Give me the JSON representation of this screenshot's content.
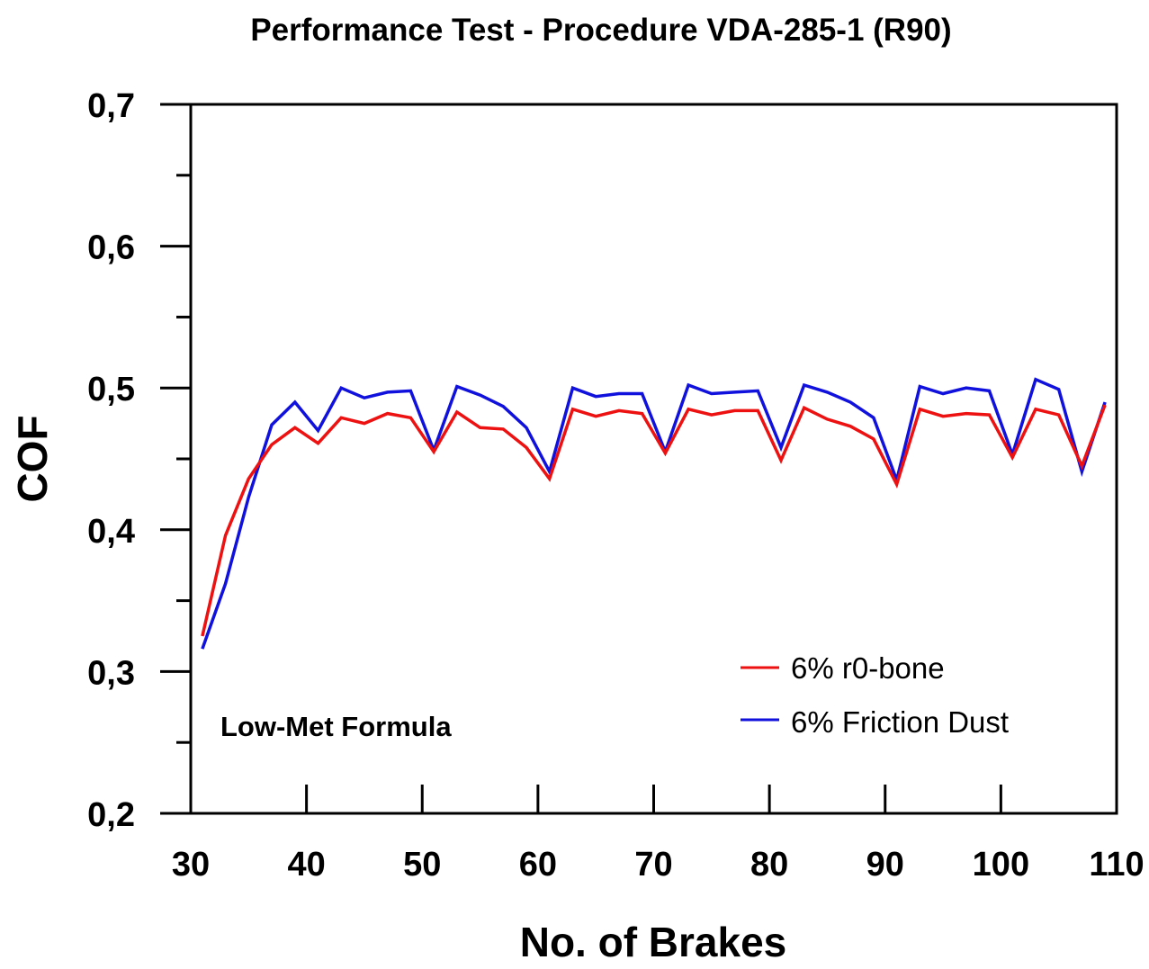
{
  "chart_data": {
    "type": "line",
    "title": "Performance Test - Procedure VDA-285-1 (R90)",
    "xlabel": "No. of Brakes",
    "ylabel": "COF",
    "xlim": [
      30,
      110
    ],
    "ylim": [
      0.2,
      0.7
    ],
    "x_ticks": [
      30,
      40,
      50,
      60,
      70,
      80,
      90,
      100,
      110
    ],
    "x_tick_labels": [
      "30",
      "40",
      "50",
      "60",
      "70",
      "80",
      "90",
      "100",
      "110"
    ],
    "y_ticks": [
      0.2,
      0.3,
      0.4,
      0.5,
      0.6,
      0.7
    ],
    "y_tick_labels": [
      "0,2",
      "0,3",
      "0,4",
      "0,5",
      "0,6",
      "0,7"
    ],
    "grid": false,
    "legend_position": "bottom-right",
    "annotation": "Low-Met Formula",
    "x": [
      31,
      33,
      35,
      37,
      39,
      41,
      43,
      45,
      47,
      49,
      51,
      53,
      55,
      57,
      59,
      61,
      63,
      65,
      67,
      69,
      71,
      73,
      75,
      77,
      79,
      81,
      83,
      85,
      87,
      89,
      91,
      93,
      95,
      97,
      99,
      101,
      103,
      105,
      107,
      109
    ],
    "series": [
      {
        "name": "6% r0-bone",
        "color": "#ee1111",
        "values": [
          0.325,
          0.396,
          0.436,
          0.46,
          0.472,
          0.461,
          0.479,
          0.475,
          0.482,
          0.479,
          0.455,
          0.483,
          0.472,
          0.471,
          0.458,
          0.436,
          0.485,
          0.48,
          0.484,
          0.482,
          0.454,
          0.485,
          0.481,
          0.484,
          0.484,
          0.449,
          0.486,
          0.478,
          0.473,
          0.464,
          0.432,
          0.485,
          0.48,
          0.482,
          0.481,
          0.451,
          0.485,
          0.481,
          0.445,
          0.488
        ]
      },
      {
        "name": "6% Friction Dust",
        "color": "#1111dd",
        "values": [
          0.316,
          0.362,
          0.423,
          0.474,
          0.49,
          0.47,
          0.5,
          0.493,
          0.497,
          0.498,
          0.456,
          0.501,
          0.495,
          0.487,
          0.472,
          0.441,
          0.5,
          0.494,
          0.496,
          0.496,
          0.455,
          0.502,
          0.496,
          0.497,
          0.498,
          0.458,
          0.502,
          0.497,
          0.49,
          0.479,
          0.435,
          0.501,
          0.496,
          0.5,
          0.498,
          0.453,
          0.506,
          0.499,
          0.441,
          0.49
        ]
      }
    ]
  }
}
